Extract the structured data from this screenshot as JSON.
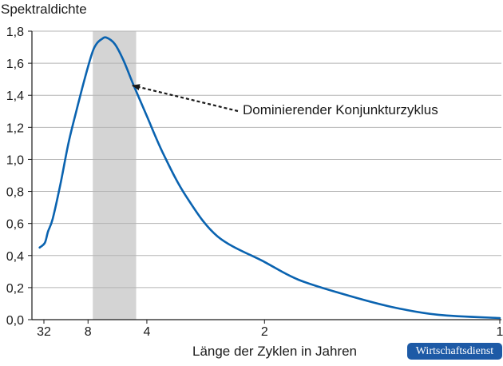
{
  "chart_data": {
    "type": "line",
    "ylabel": "Spektraldichte",
    "xlabel": "Länge der Zyklen in Jahren",
    "x_scale": "reciprocal",
    "x_ticks": [
      {
        "value": 32,
        "label": "32"
      },
      {
        "value": 8,
        "label": "8"
      },
      {
        "value": 4,
        "label": "4"
      },
      {
        "value": 2,
        "label": "2"
      },
      {
        "value": 1,
        "label": "1"
      }
    ],
    "ylim": [
      0,
      1.8
    ],
    "y_ticks": [
      "0,0",
      "0,2",
      "0,4",
      "0,6",
      "0,8",
      "1,0",
      "1,2",
      "1,4",
      "1,6",
      "1,8"
    ],
    "grid": "horizontal",
    "highlight_band": {
      "x_from": 7.4,
      "x_to": 4.4
    },
    "annotation": {
      "text": "Dominierender Konjunkturzyklus",
      "points_to": {
        "x": 5.2,
        "y": 1.45
      }
    },
    "series": [
      {
        "color": "#0a63b0",
        "points": [
          {
            "x": 45,
            "y": 0.45
          },
          {
            "x": 30,
            "y": 0.48
          },
          {
            "x": 25,
            "y": 0.55
          },
          {
            "x": 20,
            "y": 0.63
          },
          {
            "x": 15,
            "y": 0.85
          },
          {
            "x": 12,
            "y": 1.1
          },
          {
            "x": 10,
            "y": 1.3
          },
          {
            "x": 8.5,
            "y": 1.5
          },
          {
            "x": 7.5,
            "y": 1.66
          },
          {
            "x": 7,
            "y": 1.72
          },
          {
            "x": 6.5,
            "y": 1.75
          },
          {
            "x": 6.1,
            "y": 1.76
          },
          {
            "x": 5.5,
            "y": 1.72
          },
          {
            "x": 5,
            "y": 1.62
          },
          {
            "x": 4.5,
            "y": 1.46
          },
          {
            "x": 4,
            "y": 1.27
          },
          {
            "x": 3.5,
            "y": 1.03
          },
          {
            "x": 3,
            "y": 0.77
          },
          {
            "x": 2.5,
            "y": 0.52
          },
          {
            "x": 2,
            "y": 0.36
          },
          {
            "x": 1.75,
            "y": 0.25
          },
          {
            "x": 1.5,
            "y": 0.16
          },
          {
            "x": 1.3,
            "y": 0.08
          },
          {
            "x": 1.15,
            "y": 0.03
          },
          {
            "x": 1,
            "y": 0.01
          }
        ]
      }
    ]
  },
  "colors": {
    "line": "#0a63b0",
    "band": "#d4d4d4",
    "grid": "#b5b5b5",
    "axis": "#1a1a1a",
    "badge": "#1d5aa6"
  },
  "badge": {
    "text": "Wirtschaftsdienst"
  }
}
